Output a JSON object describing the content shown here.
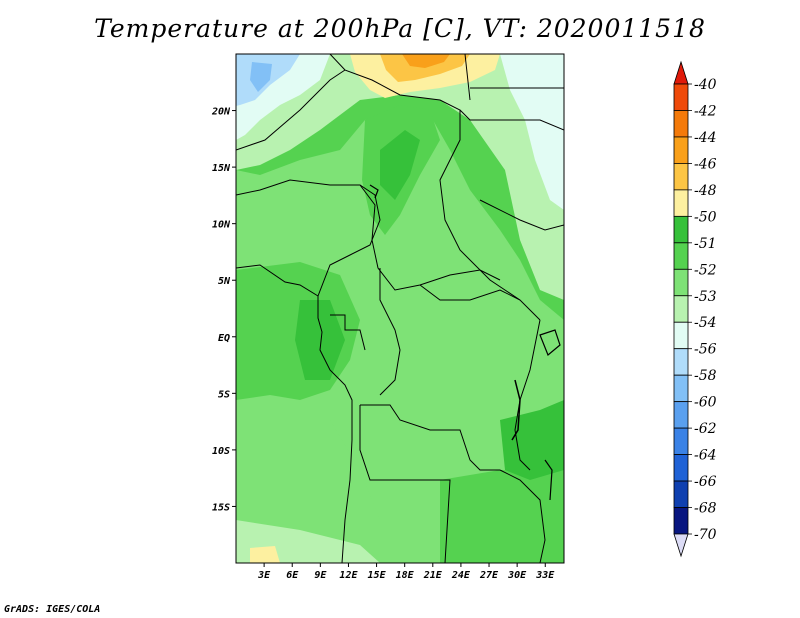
{
  "title": "Temperature at 200hPa [C], VT: 2020011518",
  "footer": "GrADS: IGES/COLA",
  "map": {
    "lat_labels": [
      "20N",
      "15N",
      "10N",
      "5N",
      "EQ",
      "5S",
      "10S",
      "15S"
    ],
    "lon_labels": [
      "3E",
      "6E",
      "9E",
      "12E",
      "15E",
      "18E",
      "21E",
      "24E",
      "27E",
      "30E",
      "33E"
    ],
    "lat_values": [
      20,
      15,
      10,
      5,
      0,
      -5,
      -10,
      -15
    ],
    "lon_values": [
      3,
      6,
      9,
      12,
      15,
      18,
      21,
      24,
      27,
      30,
      33
    ],
    "lon_range": [
      0,
      35
    ],
    "lat_range": [
      -20,
      25
    ]
  },
  "colorbar": {
    "labels": [
      "-40",
      "-42",
      "-44",
      "-46",
      "-48",
      "-50",
      "-51",
      "-52",
      "-53",
      "-54",
      "-56",
      "-58",
      "-60",
      "-62",
      "-64",
      "-66",
      "-68",
      "-70"
    ],
    "colors": [
      "#e01a0a",
      "#ef4a0a",
      "#f47a0a",
      "#f9a01a",
      "#fcc545",
      "#fdf0a0",
      "#36c13a",
      "#55d250",
      "#7ee276",
      "#b8f2b0",
      "#e2fcf4",
      "#b0dcfa",
      "#82c0f6",
      "#5aa0ef",
      "#3a82e6",
      "#1f62d6",
      "#0f40b0",
      "#081680"
    ],
    "end_low_color": "#dcdcf6"
  }
}
